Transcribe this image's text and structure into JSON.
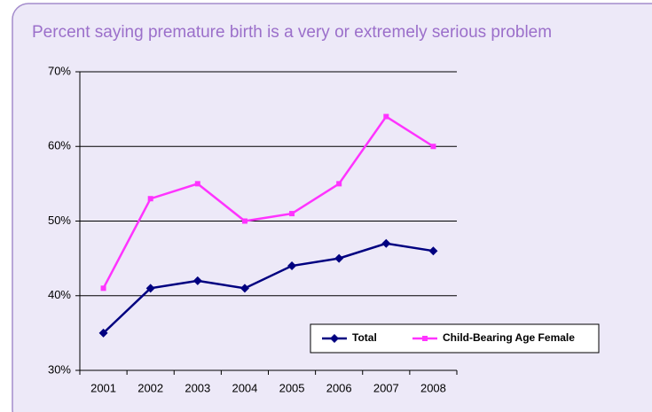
{
  "chart_data": {
    "type": "line",
    "title": "Percent saying premature birth is a very or extremely serious problem",
    "categories": [
      "2001",
      "2002",
      "2003",
      "2004",
      "2005",
      "2006",
      "2007",
      "2008"
    ],
    "series": [
      {
        "name": "Total",
        "color": "#000080",
        "values": [
          35,
          41,
          42,
          41,
          44,
          45,
          47,
          46
        ]
      },
      {
        "name": "Child-Bearing Age Female",
        "color": "#ff33ff",
        "values": [
          41,
          53,
          55,
          50,
          51,
          55,
          64,
          60
        ]
      }
    ],
    "ylim": [
      30,
      70
    ],
    "yticks": [
      {
        "value": 30,
        "label": "30%"
      },
      {
        "value": 40,
        "label": "40%"
      },
      {
        "value": 50,
        "label": "50%"
      },
      {
        "value": 60,
        "label": "60%"
      },
      {
        "value": 70,
        "label": "70%"
      }
    ],
    "grid": true
  }
}
